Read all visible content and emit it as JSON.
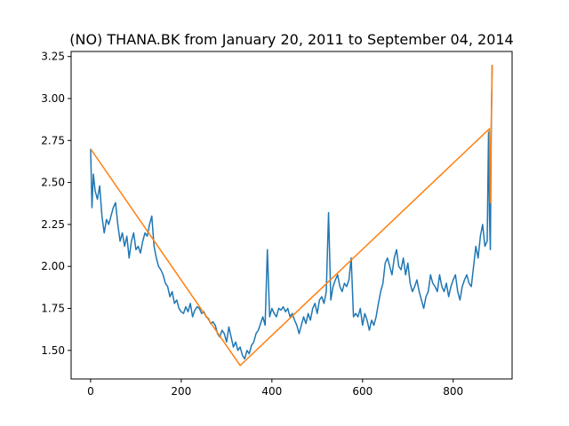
{
  "chart_data": {
    "type": "line",
    "title": "(NO) THANA.BK from January 20, 2011 to September 04, 2014",
    "xlabel": "",
    "ylabel": "",
    "xlim": [
      -43,
      930
    ],
    "ylim": [
      1.33,
      3.28
    ],
    "xticks": [
      0,
      200,
      400,
      600,
      800
    ],
    "yticks": [
      1.5,
      1.75,
      2.0,
      2.25,
      2.5,
      2.75,
      3.0,
      3.25
    ],
    "grid": false,
    "legend": "none",
    "series": [
      {
        "color": "#1f77b4",
        "x": [
          0,
          3,
          6,
          10,
          15,
          20,
          25,
          30,
          35,
          40,
          45,
          50,
          55,
          60,
          65,
          70,
          75,
          80,
          85,
          90,
          95,
          100,
          105,
          110,
          115,
          120,
          125,
          130,
          135,
          140,
          145,
          150,
          155,
          160,
          165,
          170,
          175,
          180,
          185,
          190,
          195,
          200,
          205,
          210,
          215,
          220,
          225,
          230,
          235,
          240,
          245,
          250,
          255,
          260,
          265,
          270,
          275,
          280,
          285,
          290,
          295,
          300,
          305,
          310,
          315,
          320,
          325,
          330,
          335,
          340,
          345,
          350,
          355,
          360,
          365,
          370,
          375,
          380,
          385,
          390,
          395,
          400,
          405,
          410,
          415,
          420,
          425,
          430,
          435,
          440,
          445,
          450,
          455,
          460,
          465,
          470,
          475,
          480,
          485,
          490,
          495,
          500,
          505,
          510,
          515,
          520,
          525,
          530,
          535,
          540,
          545,
          550,
          555,
          560,
          565,
          570,
          575,
          580,
          585,
          590,
          595,
          600,
          605,
          610,
          615,
          620,
          625,
          630,
          635,
          640,
          645,
          650,
          655,
          660,
          665,
          670,
          675,
          680,
          685,
          690,
          695,
          700,
          705,
          710,
          715,
          720,
          725,
          730,
          735,
          740,
          745,
          750,
          755,
          760,
          765,
          770,
          775,
          780,
          785,
          790,
          795,
          800,
          805,
          810,
          815,
          820,
          825,
          830,
          835,
          840,
          845,
          850,
          855,
          860,
          865,
          870,
          875,
          878,
          880,
          882,
          884,
          886
        ],
        "y": [
          2.7,
          2.35,
          2.55,
          2.45,
          2.4,
          2.48,
          2.3,
          2.2,
          2.28,
          2.25,
          2.3,
          2.35,
          2.38,
          2.25,
          2.15,
          2.2,
          2.12,
          2.18,
          2.05,
          2.15,
          2.2,
          2.1,
          2.12,
          2.08,
          2.15,
          2.2,
          2.18,
          2.25,
          2.3,
          2.12,
          2.05,
          2.0,
          1.98,
          1.95,
          1.9,
          1.88,
          1.82,
          1.85,
          1.78,
          1.8,
          1.75,
          1.73,
          1.72,
          1.76,
          1.73,
          1.78,
          1.7,
          1.74,
          1.76,
          1.75,
          1.72,
          1.73,
          1.7,
          1.69,
          1.66,
          1.67,
          1.65,
          1.6,
          1.58,
          1.62,
          1.6,
          1.55,
          1.64,
          1.58,
          1.52,
          1.55,
          1.5,
          1.52,
          1.47,
          1.45,
          1.5,
          1.48,
          1.53,
          1.55,
          1.6,
          1.62,
          1.66,
          1.7,
          1.65,
          2.1,
          1.7,
          1.75,
          1.72,
          1.7,
          1.75,
          1.74,
          1.76,
          1.73,
          1.75,
          1.7,
          1.72,
          1.68,
          1.65,
          1.6,
          1.65,
          1.7,
          1.66,
          1.72,
          1.68,
          1.75,
          1.78,
          1.72,
          1.8,
          1.82,
          1.78,
          1.85,
          2.32,
          1.8,
          1.88,
          1.92,
          1.95,
          1.88,
          1.85,
          1.9,
          1.88,
          1.92,
          2.05,
          1.7,
          1.72,
          1.7,
          1.75,
          1.65,
          1.72,
          1.68,
          1.62,
          1.68,
          1.65,
          1.7,
          1.78,
          1.85,
          1.9,
          2.02,
          2.05,
          2.0,
          1.95,
          2.05,
          2.1,
          2.0,
          1.98,
          2.05,
          1.95,
          2.02,
          1.9,
          1.85,
          1.88,
          1.92,
          1.85,
          1.8,
          1.75,
          1.82,
          1.85,
          1.95,
          1.9,
          1.88,
          1.85,
          1.95,
          1.88,
          1.85,
          1.9,
          1.82,
          1.88,
          1.92,
          1.95,
          1.85,
          1.8,
          1.88,
          1.92,
          1.95,
          1.9,
          1.88,
          2.0,
          2.12,
          2.05,
          2.18,
          2.25,
          2.12,
          2.15,
          2.8,
          2.3,
          2.1,
          2.8,
          3.2
        ]
      },
      {
        "color": "#ff7f0e",
        "x": [
          0,
          330,
          880,
          882,
          884,
          886
        ],
        "y": [
          2.7,
          1.41,
          2.82,
          2.38,
          2.85,
          3.2
        ]
      }
    ]
  }
}
